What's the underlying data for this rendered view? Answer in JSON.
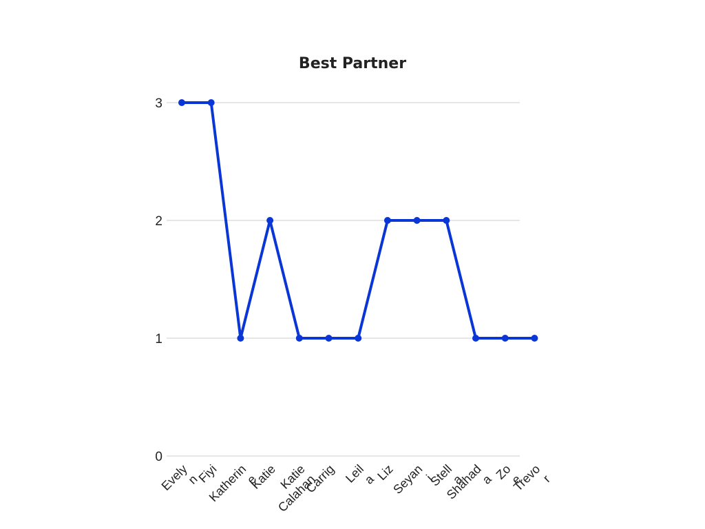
{
  "chart_data": {
    "type": "line",
    "title": "Best Partner",
    "xlabel": "",
    "ylabel": "",
    "categories": [
      "Evelyn",
      "Fiyi",
      "Katherine",
      "Katie",
      "Katie Calahan",
      "Carrig",
      "Leila",
      "Liz",
      "Seyani",
      "Stella",
      "Shahada",
      "Zoe",
      "Trevor"
    ],
    "tick_lines": [
      [
        "Evely",
        "n"
      ],
      [
        "Fiyi"
      ],
      [
        "Katherin",
        "e"
      ],
      [
        "Katie"
      ],
      [
        "Katie",
        "Calahan"
      ],
      [
        "Carrig"
      ],
      [
        "Leil",
        "a"
      ],
      [
        "Liz"
      ],
      [
        "Seyan",
        "i"
      ],
      [
        "Stell",
        "a"
      ],
      [
        "Shahad",
        "a"
      ],
      [
        "Zo",
        "e"
      ],
      [
        "Trevo",
        "r"
      ]
    ],
    "series": [
      {
        "values": [
          3,
          3,
          1,
          2,
          1,
          1,
          1,
          2,
          2,
          2,
          1,
          1,
          1
        ]
      }
    ],
    "ylim": [
      0,
      3
    ],
    "yticks": [
      0,
      1,
      2,
      3
    ],
    "grid": true,
    "legend": "none",
    "colors": {
      "line": "#0a36d6",
      "grid": "#cccccc"
    }
  }
}
